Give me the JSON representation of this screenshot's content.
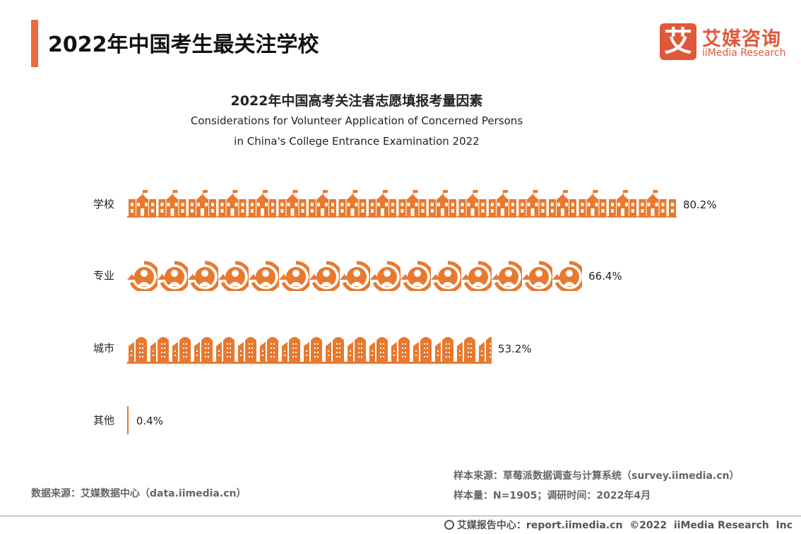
{
  "header": {
    "title": "2022年中国考生最关注学校"
  },
  "logo": {
    "mark": "艾",
    "cn": "艾媒咨询",
    "en": "iiMedia Research"
  },
  "chart_data": {
    "type": "bar",
    "title": "2022年中国高考关注者志愿填报考量因素",
    "subtitle_line1": "Considerations for Volunteer Application of Concerned Persons",
    "subtitle_line2": "in China's College Entrance Examination 2022",
    "categories": [
      "学校",
      "专业",
      "城市",
      "其他"
    ],
    "values": [
      80.2,
      66.4,
      53.2,
      0.4
    ],
    "value_labels": [
      "80.2%",
      "66.4%",
      "53.2%",
      "0.4%"
    ],
    "icons": [
      "school-icon",
      "person-cycle-icon",
      "building-icon",
      "building-icon"
    ],
    "unit": "%",
    "xlim": [
      0,
      100
    ],
    "color": "#E8792F"
  },
  "sources": {
    "left": "数据来源：艾媒数据中心（data.iimedia.cn）",
    "sample_source": "样本来源：草莓派数据调查与计算系统（survey.iimedia.cn）",
    "sample_size": "样本量：N=1905；调研时间：2022年4月"
  },
  "footer": {
    "text": "艾媒报告中心：report.iimedia.cn  ©2022  iiMedia Research  Inc"
  }
}
